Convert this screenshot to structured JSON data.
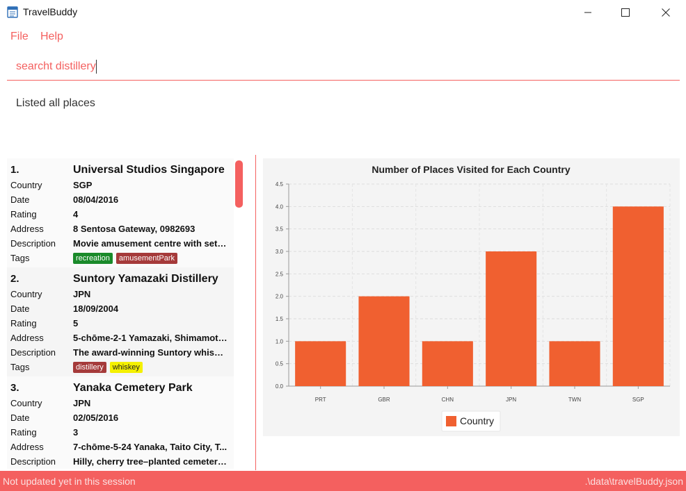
{
  "window": {
    "title": "TravelBuddy"
  },
  "menu": {
    "file": "File",
    "help": "Help"
  },
  "command": {
    "value": "searcht distillery"
  },
  "result": {
    "text": "Listed all places"
  },
  "field_labels": {
    "country": "Country",
    "date": "Date",
    "rating": "Rating",
    "address": "Address",
    "description": "Description",
    "tags": "Tags"
  },
  "places": [
    {
      "index": "1.",
      "name": "Universal Studios Singapore",
      "country": "SGP",
      "date": "08/04/2016",
      "rating": "4",
      "address": "8 Sentosa Gateway, 0982693",
      "description": "Movie amusement centre with sets ...",
      "tags": [
        {
          "label": "recreation",
          "color": "#1a8a2a"
        },
        {
          "label": "amusementPark",
          "color": "#a53a3a"
        }
      ]
    },
    {
      "index": "2.",
      "name": "Suntory Yamazaki Distillery",
      "country": "JPN",
      "date": "18/09/2004",
      "rating": "5",
      "address": "5-chōme-2-1 Yamazaki, Shimamoto,...",
      "description": "The award-winning Suntory whisky ...",
      "tags": [
        {
          "label": "distillery",
          "color": "#a53a3a"
        },
        {
          "label": "whiskey",
          "color": "#f4f000"
        }
      ]
    },
    {
      "index": "3.",
      "name": "Yanaka Cemetery Park",
      "country": "JPN",
      "date": "02/05/2016",
      "rating": "3",
      "address": "7-chōme-5-24 Yanaka, Taito City, T...",
      "description": "Hilly, cherry tree–planted cemetery ...",
      "tags": []
    }
  ],
  "status": {
    "left": "Not updated yet in this session",
    "right": ".\\data\\travelBuddy.json"
  },
  "colors": {
    "accent": "#f4605f",
    "bar": "#f06030"
  },
  "chart_data": {
    "type": "bar",
    "title": "Number of Places Visited for Each Country",
    "categories": [
      "PRT",
      "GBR",
      "CHN",
      "JPN",
      "TWN",
      "SGP"
    ],
    "series": [
      {
        "name": "Country",
        "values": [
          1,
          2,
          1,
          3,
          1,
          4
        ]
      }
    ],
    "yticks": [
      "0.0",
      "0.5",
      "1.0",
      "1.5",
      "2.0",
      "2.5",
      "3.0",
      "3.5",
      "4.0",
      "4.5"
    ],
    "ylim": [
      0,
      4.5
    ],
    "grid": true,
    "legend": "bottom"
  }
}
